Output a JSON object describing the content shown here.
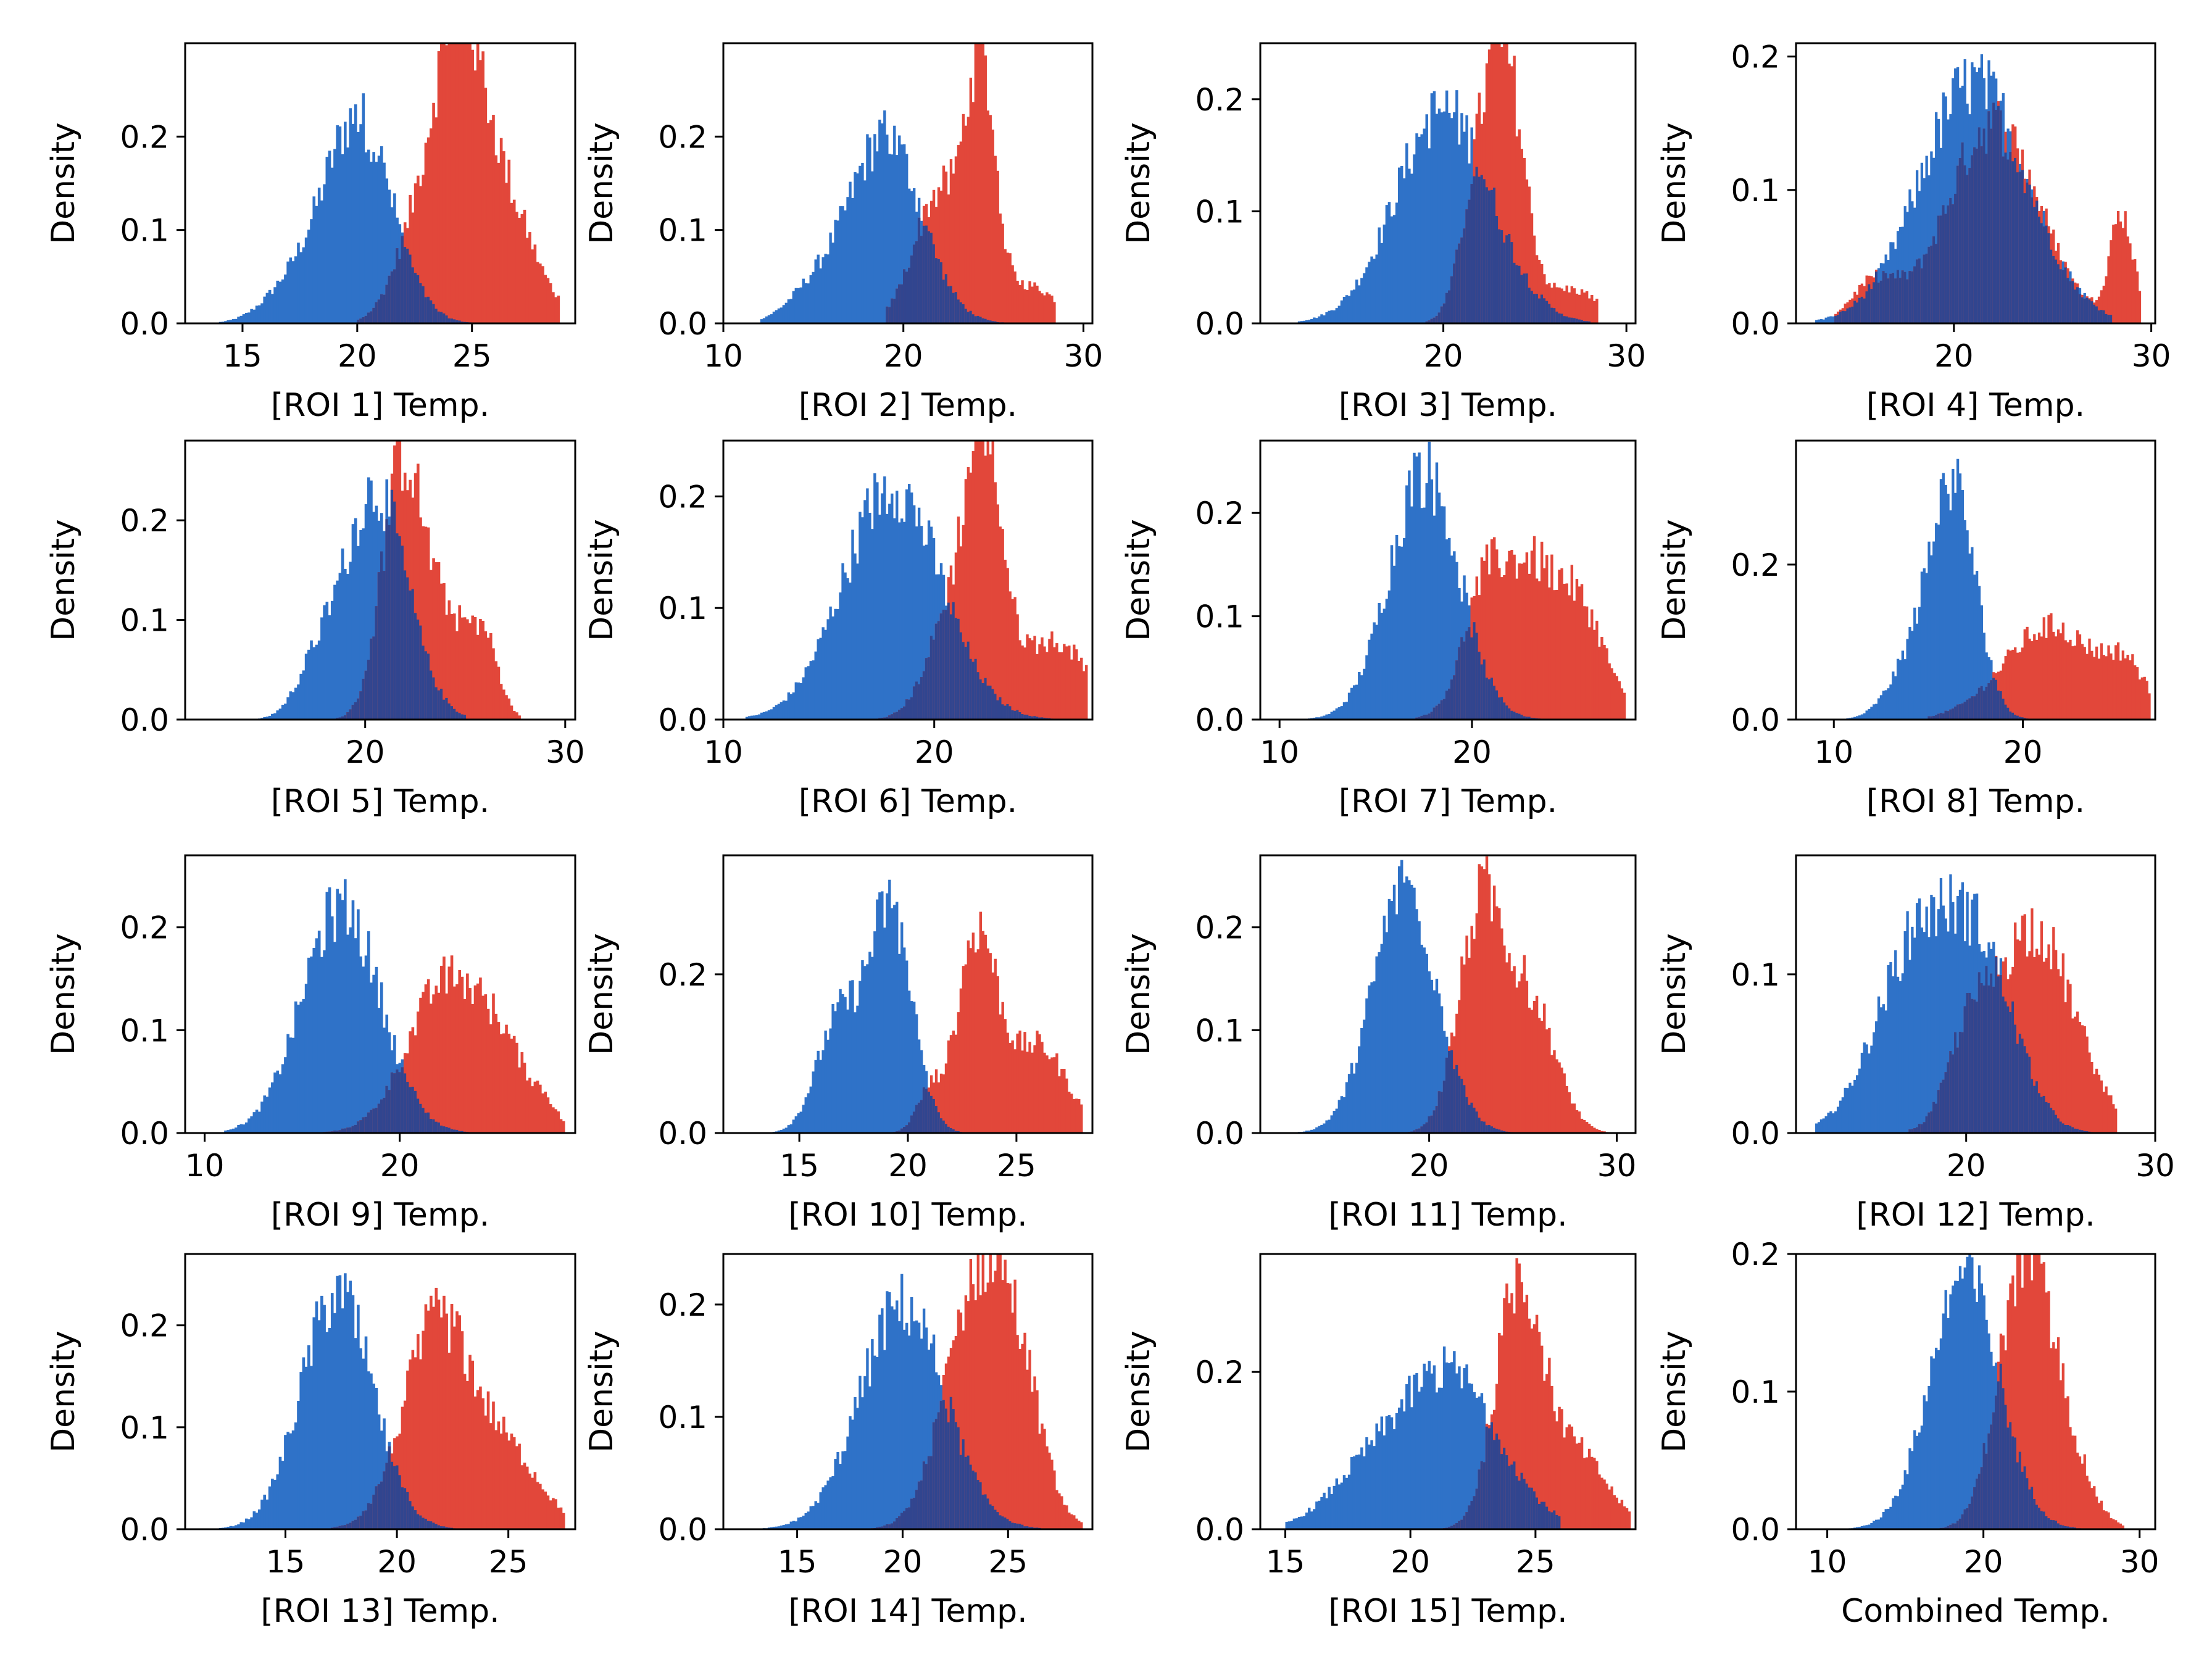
{
  "figure": {
    "colors": {
      "blue": "#2f72c8",
      "red": "#e2473a",
      "overlap": "#31458f",
      "axis": "#000000"
    },
    "ylabel": "Density"
  },
  "chart_data": [
    {
      "type": "bar",
      "title": "",
      "xlabel": "[ROI 1] Temp.",
      "ylabel": "Density",
      "xlim": [
        12.5,
        29.5
      ],
      "ylim": [
        0,
        0.3
      ],
      "xticks": [
        15,
        20,
        25
      ],
      "yticks": [
        0.0,
        0.1,
        0.2
      ],
      "series": [
        {
          "name": "blue",
          "peaks": [
            [
              20,
              1.5,
              0.22
            ],
            [
              17,
              1.2,
              0.03
            ]
          ],
          "range": [
            14,
            27
          ]
        },
        {
          "name": "red",
          "peaks": [
            [
              24.3,
              1.0,
              0.25
            ],
            [
              26,
              1.5,
              0.15
            ],
            [
              22.5,
              1.0,
              0.08
            ]
          ],
          "range": [
            20,
            28.8
          ]
        }
      ]
    },
    {
      "type": "bar",
      "title": "",
      "xlabel": "[ROI 2] Temp.",
      "ylabel": "Density",
      "xlim": [
        10,
        30.5
      ],
      "ylim": [
        0,
        0.3
      ],
      "xticks": [
        10,
        20,
        30
      ],
      "yticks": [
        0.0,
        0.1,
        0.2
      ],
      "series": [
        {
          "name": "blue",
          "peaks": [
            [
              19,
              2.0,
              0.2
            ],
            [
              15,
              1.5,
              0.03
            ]
          ],
          "range": [
            12,
            26
          ]
        },
        {
          "name": "red",
          "peaks": [
            [
              24.3,
              0.8,
              0.25
            ],
            [
              22,
              1.4,
              0.14
            ],
            [
              27,
              1.5,
              0.04
            ]
          ],
          "range": [
            19,
            28.5
          ]
        }
      ]
    },
    {
      "type": "bar",
      "title": "",
      "xlabel": "[ROI 3] Temp.",
      "ylabel": "Density",
      "xlim": [
        10,
        30.5
      ],
      "ylim": [
        0,
        0.25
      ],
      "xticks": [
        20,
        30
      ],
      "yticks": [
        0.0,
        0.1,
        0.2
      ],
      "series": [
        {
          "name": "blue",
          "peaks": [
            [
              20,
              2.6,
              0.19
            ]
          ],
          "range": [
            12,
            28
          ]
        },
        {
          "name": "red",
          "peaks": [
            [
              23.5,
              1.0,
              0.2
            ],
            [
              22,
              1.0,
              0.12
            ],
            [
              27,
              1.5,
              0.03
            ]
          ],
          "range": [
            19,
            28.5
          ]
        }
      ]
    },
    {
      "type": "bar",
      "title": "",
      "xlabel": "[ROI 4] Temp.",
      "ylabel": "Density",
      "xlim": [
        12,
        30.2
      ],
      "ylim": [
        0,
        0.21
      ],
      "xticks": [
        20,
        30
      ],
      "yticks": [
        0.0,
        0.1,
        0.2
      ],
      "series": [
        {
          "name": "blue",
          "peaks": [
            [
              21,
              2.7,
              0.18
            ]
          ],
          "range": [
            13,
            28
          ]
        },
        {
          "name": "red",
          "peaks": [
            [
              22,
              2.3,
              0.15
            ],
            [
              28.5,
              0.6,
              0.08
            ],
            [
              16,
              1.2,
              0.03
            ]
          ],
          "range": [
            14,
            29.5
          ]
        }
      ]
    },
    {
      "type": "bar",
      "title": "",
      "xlabel": "[ROI 5] Temp.",
      "ylabel": "Density",
      "xlim": [
        11,
        30.5
      ],
      "ylim": [
        0,
        0.28
      ],
      "xticks": [
        20,
        30
      ],
      "yticks": [
        0.0,
        0.1,
        0.2
      ],
      "series": [
        {
          "name": "blue",
          "peaks": [
            [
              20.5,
              1.6,
              0.23
            ],
            [
              17.5,
              1.0,
              0.04
            ]
          ],
          "range": [
            12,
            25
          ]
        },
        {
          "name": "red",
          "peaks": [
            [
              21.8,
              1.0,
              0.24
            ],
            [
              24,
              1.3,
              0.1
            ],
            [
              26,
              0.7,
              0.06
            ]
          ],
          "range": [
            18,
            27.8
          ]
        }
      ]
    },
    {
      "type": "bar",
      "title": "",
      "xlabel": "[ROI 6] Temp.",
      "ylabel": "Density",
      "xlim": [
        10,
        27.5
      ],
      "ylim": [
        0,
        0.25
      ],
      "xticks": [
        10,
        20
      ],
      "yticks": [
        0.0,
        0.1,
        0.2
      ],
      "series": [
        {
          "name": "blue",
          "peaks": [
            [
              18,
              2.3,
              0.21
            ]
          ],
          "range": [
            11,
            26
          ]
        },
        {
          "name": "red",
          "peaks": [
            [
              22.4,
              0.8,
              0.2
            ],
            [
              21,
              1.2,
              0.1
            ],
            [
              25.5,
              2.0,
              0.07
            ]
          ],
          "range": [
            17,
            27.3
          ]
        }
      ]
    },
    {
      "type": "bar",
      "title": "",
      "xlabel": "[ROI 7] Temp.",
      "ylabel": "Density",
      "xlim": [
        9,
        28.5
      ],
      "ylim": [
        0,
        0.27
      ],
      "xticks": [
        10,
        20
      ],
      "yticks": [
        0.0,
        0.1,
        0.2
      ],
      "series": [
        {
          "name": "blue",
          "peaks": [
            [
              17.5,
              1.8,
              0.24
            ]
          ],
          "range": [
            10,
            24
          ]
        },
        {
          "name": "red",
          "peaks": [
            [
              23,
              2.0,
              0.15
            ],
            [
              20.5,
              1.0,
              0.07
            ],
            [
              26,
              1.2,
              0.06
            ]
          ],
          "range": [
            17,
            28
          ]
        }
      ]
    },
    {
      "type": "bar",
      "title": "",
      "xlabel": "[ROI 8] Temp.",
      "ylabel": "Density",
      "xlim": [
        8,
        27
      ],
      "ylim": [
        0,
        0.36
      ],
      "xticks": [
        10,
        20
      ],
      "yticks": [
        0.0,
        0.2
      ],
      "series": [
        {
          "name": "blue",
          "peaks": [
            [
              16.3,
              1.2,
              0.3
            ],
            [
              14,
              1.2,
              0.06
            ]
          ],
          "range": [
            10,
            22
          ]
        },
        {
          "name": "red",
          "peaks": [
            [
              21.5,
              2.5,
              0.12
            ],
            [
              25.5,
              1.0,
              0.05
            ]
          ],
          "range": [
            15,
            26.8
          ]
        }
      ]
    },
    {
      "type": "bar",
      "title": "",
      "xlabel": "[ROI 9] Temp.",
      "ylabel": "Density",
      "xlim": [
        9,
        29
      ],
      "ylim": [
        0,
        0.27
      ],
      "xticks": [
        10,
        20
      ],
      "yticks": [
        0.0,
        0.1,
        0.2
      ],
      "series": [
        {
          "name": "blue",
          "peaks": [
            [
              17,
              2.0,
              0.22
            ]
          ],
          "range": [
            11,
            24
          ]
        },
        {
          "name": "red",
          "peaks": [
            [
              22.5,
              2.0,
              0.15
            ],
            [
              25.5,
              1.2,
              0.05
            ],
            [
              27.5,
              0.6,
              0.02
            ]
          ],
          "range": [
            16,
            28.5
          ]
        }
      ]
    },
    {
      "type": "bar",
      "title": "",
      "xlabel": "[ROI 10] Temp.",
      "ylabel": "Density",
      "xlim": [
        11.5,
        28.5
      ],
      "ylim": [
        0,
        0.35
      ],
      "xticks": [
        15,
        20,
        25
      ],
      "yticks": [
        0.0,
        0.2
      ],
      "series": [
        {
          "name": "blue",
          "peaks": [
            [
              19.2,
              1.0,
              0.28
            ],
            [
              16.8,
              1.0,
              0.14
            ]
          ],
          "range": [
            13,
            23
          ]
        },
        {
          "name": "red",
          "peaks": [
            [
              23.2,
              0.9,
              0.25
            ],
            [
              26,
              1.3,
              0.11
            ],
            [
              21,
              0.6,
              0.05
            ]
          ],
          "range": [
            19,
            28
          ]
        }
      ]
    },
    {
      "type": "bar",
      "title": "",
      "xlabel": "[ROI 11] Temp.",
      "ylabel": "Density",
      "xlim": [
        11,
        31
      ],
      "ylim": [
        0,
        0.27
      ],
      "xticks": [
        20,
        30
      ],
      "yticks": [
        0.0,
        0.1,
        0.2
      ],
      "series": [
        {
          "name": "blue",
          "peaks": [
            [
              18.7,
              1.7,
              0.24
            ]
          ],
          "range": [
            12,
            25
          ]
        },
        {
          "name": "red",
          "peaks": [
            [
              22.8,
              1.2,
              0.22
            ],
            [
              25.5,
              1.3,
              0.12
            ]
          ],
          "range": [
            18.5,
            30
          ]
        }
      ]
    },
    {
      "type": "bar",
      "title": "",
      "xlabel": "[ROI 12] Temp.",
      "ylabel": "Density",
      "xlim": [
        11,
        30
      ],
      "ylim": [
        0,
        0.175
      ],
      "xticks": [
        20,
        30
      ],
      "yticks": [
        0.0,
        0.1
      ],
      "series": [
        {
          "name": "blue",
          "peaks": [
            [
              17.5,
              2.2,
              0.12
            ],
            [
              21,
              1.8,
              0.09
            ]
          ],
          "range": [
            12,
            27
          ]
        },
        {
          "name": "red",
          "peaks": [
            [
              23.5,
              2.2,
              0.13
            ],
            [
              20,
              1.0,
              0.04
            ]
          ],
          "range": [
            17,
            28
          ]
        }
      ]
    },
    {
      "type": "bar",
      "title": "",
      "xlabel": "[ROI 13] Temp.",
      "ylabel": "Density",
      "xlim": [
        10.5,
        28
      ],
      "ylim": [
        0,
        0.27
      ],
      "xticks": [
        15,
        20,
        25
      ],
      "yticks": [
        0.0,
        0.1,
        0.2
      ],
      "series": [
        {
          "name": "blue",
          "peaks": [
            [
              17.3,
              1.6,
              0.23
            ]
          ],
          "range": [
            12,
            23
          ]
        },
        {
          "name": "red",
          "peaks": [
            [
              21.8,
              1.5,
              0.2
            ],
            [
              25,
              1.5,
              0.07
            ]
          ],
          "range": [
            17,
            27.5
          ]
        }
      ]
    },
    {
      "type": "bar",
      "title": "",
      "xlabel": "[ROI 14] Temp.",
      "ylabel": "Density",
      "xlim": [
        11.5,
        29
      ],
      "ylim": [
        0,
        0.245
      ],
      "xticks": [
        15,
        20,
        25
      ],
      "yticks": [
        0.0,
        0.1,
        0.2
      ],
      "series": [
        {
          "name": "blue",
          "peaks": [
            [
              20,
              2.0,
              0.2
            ]
          ],
          "range": [
            13,
            27
          ]
        },
        {
          "name": "red",
          "peaks": [
            [
              23.5,
              1.5,
              0.21
            ],
            [
              25.5,
              1.2,
              0.1
            ]
          ],
          "range": [
            17,
            28.5
          ]
        }
      ]
    },
    {
      "type": "bar",
      "title": "",
      "xlabel": "[ROI 15] Temp.",
      "ylabel": "Density",
      "xlim": [
        14,
        29
      ],
      "ylim": [
        0,
        0.35
      ],
      "xticks": [
        15,
        20,
        25
      ],
      "yticks": [
        0.0,
        0.2
      ],
      "series": [
        {
          "name": "blue",
          "peaks": [
            [
              21.5,
              2.0,
              0.2
            ],
            [
              18,
              1.5,
              0.05
            ]
          ],
          "range": [
            15,
            26
          ]
        },
        {
          "name": "red",
          "peaks": [
            [
              24.3,
              0.9,
              0.3
            ],
            [
              26.5,
              1.3,
              0.1
            ]
          ],
          "range": [
            21,
            28.8
          ]
        }
      ]
    },
    {
      "type": "bar",
      "title": "",
      "xlabel": "Combined Temp.",
      "ylabel": "Density",
      "xlim": [
        8,
        31
      ],
      "ylim": [
        0,
        0.2
      ],
      "xticks": [
        10,
        20,
        30
      ],
      "yticks": [
        0.0,
        0.1,
        0.2
      ],
      "series": [
        {
          "name": "blue",
          "peaks": [
            [
              18.8,
              2.2,
              0.185
            ]
          ],
          "range": [
            11,
            28
          ]
        },
        {
          "name": "red",
          "peaks": [
            [
              22.5,
              1.6,
              0.18
            ],
            [
              25,
              1.6,
              0.06
            ]
          ],
          "range": [
            17,
            29
          ]
        }
      ]
    }
  ]
}
